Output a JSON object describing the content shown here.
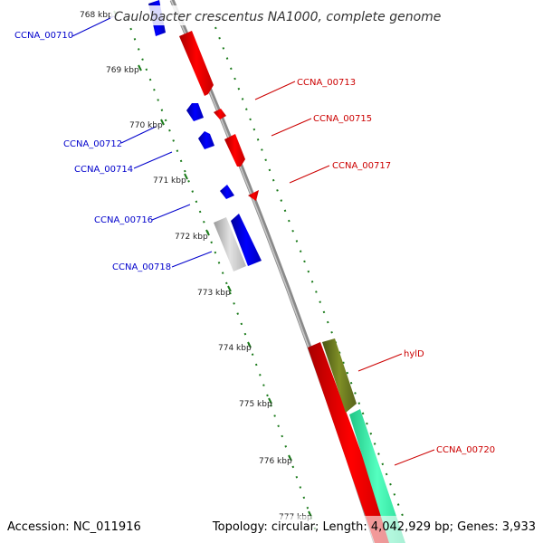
{
  "title": "Caulobacter crescentus NA1000, complete genome",
  "footer": {
    "accession": "Accession: NC_011916",
    "summary": "Topology: circular; Length: 4,042,929 bp; Genes: 3,933"
  },
  "ticks": [
    "768 kbp",
    "769 kbp",
    "770 kbp",
    "771 kbp",
    "772 kbp",
    "773 kbp",
    "774 kbp",
    "775 kbp",
    "776 kbp",
    "777 kbp"
  ],
  "genes": {
    "reverse": [
      "CCNA_00710",
      "CCNA_00712",
      "CCNA_00714",
      "CCNA_00716",
      "CCNA_00718"
    ],
    "forward": [
      "CCNA_00713",
      "CCNA_00715",
      "CCNA_00717",
      "hylD",
      "CCNA_00720"
    ]
  },
  "colors": {
    "forward_gene": "#ff0000",
    "reverse_gene": "#0000ff",
    "other_gene": "#c8c8c8",
    "hylD_feature": "#6b7a1f",
    "ccna_00720_feature": "#33f0a8",
    "backbone": "#8a8a8a",
    "tick": "#1a7a1a"
  }
}
